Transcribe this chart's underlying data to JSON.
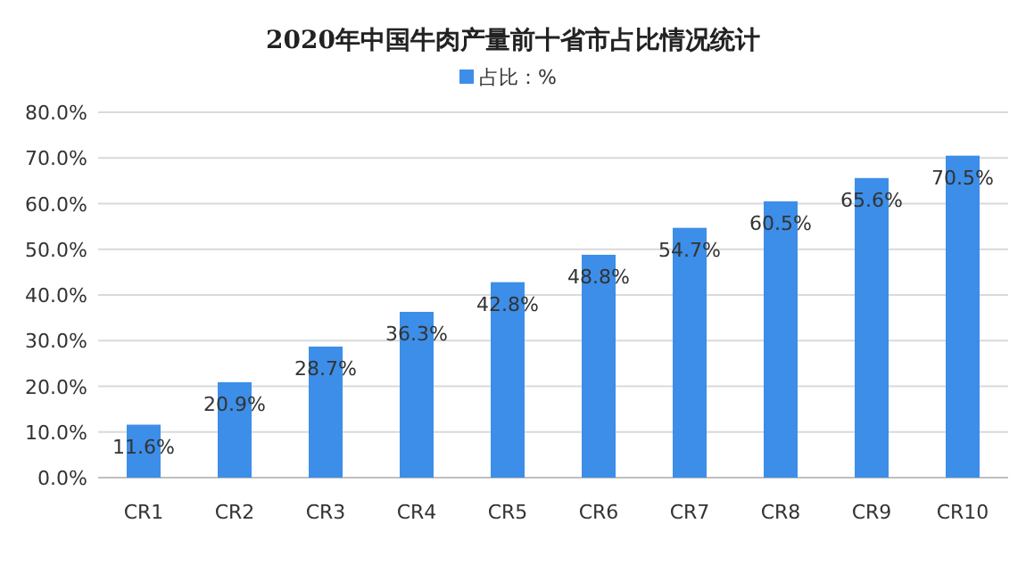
{
  "chart_data": {
    "type": "bar",
    "title": "2020年中国牛肉产量前十省市占比情况统计",
    "categories": [
      "CR1",
      "CR2",
      "CR3",
      "CR4",
      "CR5",
      "CR6",
      "CR7",
      "CR8",
      "CR9",
      "CR10"
    ],
    "series": [
      {
        "name": "占比：%",
        "color": "#3d8ee8",
        "values": [
          11.6,
          20.9,
          28.7,
          36.3,
          42.8,
          48.8,
          54.7,
          60.5,
          65.6,
          70.5
        ],
        "value_labels": [
          "11.6%",
          "20.9%",
          "28.7%",
          "36.3%",
          "42.8%",
          "48.8%",
          "54.7%",
          "60.5%",
          "65.6%",
          "70.5%"
        ]
      }
    ],
    "ylim": [
      0,
      80
    ],
    "yticks": [
      {
        "value": 0,
        "label": "0.0%"
      },
      {
        "value": 10,
        "label": "10.0%"
      },
      {
        "value": 20,
        "label": "20.0%"
      },
      {
        "value": 30,
        "label": "30.0%"
      },
      {
        "value": 40,
        "label": "40.0%"
      },
      {
        "value": 50,
        "label": "50.0%"
      },
      {
        "value": 60,
        "label": "60.0%"
      },
      {
        "value": 70,
        "label": "70.0%"
      },
      {
        "value": 80,
        "label": "80.0%"
      }
    ],
    "grid": "y",
    "legend": "top"
  }
}
